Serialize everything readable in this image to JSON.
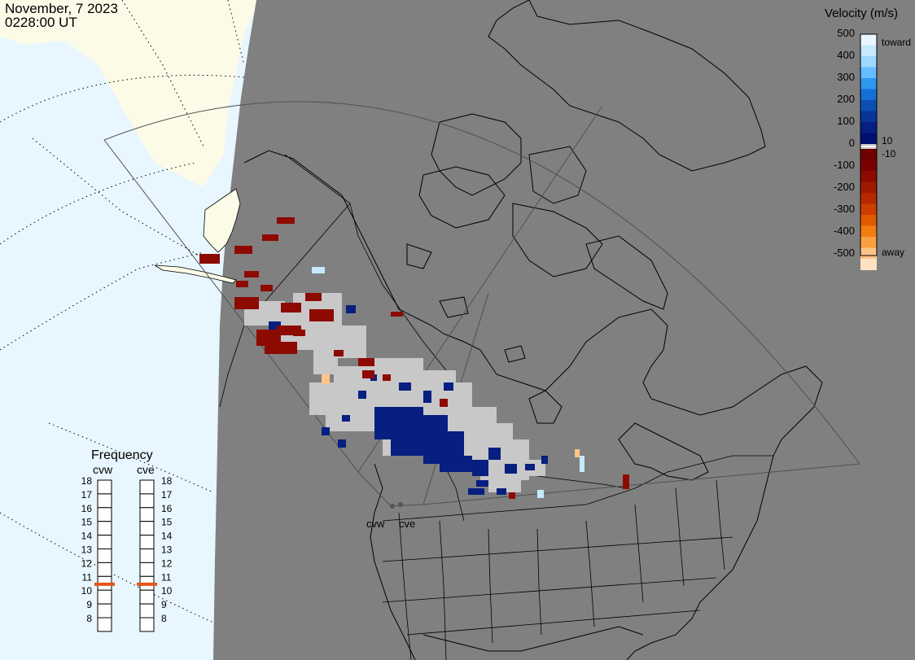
{
  "header": {
    "date": "November, 7 2023",
    "time": "0228:00 UT"
  },
  "velocity_scale": {
    "title": "Velocity (m/s)",
    "ticks": [
      "500",
      "400",
      "300",
      "200",
      "100",
      "0",
      "-100",
      "-200",
      "-300",
      "-400",
      "-500"
    ],
    "label_toward": "toward",
    "label_away": "away",
    "label_pos_threshold": "10",
    "label_neg_threshold": "-10",
    "colors_toward": [
      "#e8f6ff",
      "#c6e9ff",
      "#9dd8ff",
      "#66bdff",
      "#2f97f0",
      "#1470d6",
      "#0b4fb5",
      "#083698",
      "#061f80",
      "#00106e"
    ],
    "colors_away": [
      "#6e0000",
      "#7a0000",
      "#8c0a00",
      "#a01800",
      "#b52800",
      "#cc3d00",
      "#e25a00",
      "#f27c10",
      "#f9a040",
      "#fdc488",
      "#ffe2c0"
    ],
    "colors_mid": [
      "#c8c8c8",
      "#ffffff",
      "#c8c8c8"
    ]
  },
  "frequency_panel": {
    "title": "Frequency",
    "radars": [
      {
        "name": "cvw",
        "frequency_mhz": 11
      },
      {
        "name": "cve",
        "frequency_mhz": 11
      }
    ],
    "ticks": [
      "18",
      "17",
      "16",
      "15",
      "14",
      "13",
      "12",
      "11",
      "10",
      "9",
      "8"
    ],
    "marker_color": "#e8541c"
  },
  "map": {
    "radar_site_labels": [
      "cvw",
      "cve"
    ],
    "colors": {
      "night": "#808080",
      "sea": "#e8f6ff",
      "land_day": "#fbfbe8",
      "ground_scatter": "#c8c8c8"
    }
  }
}
